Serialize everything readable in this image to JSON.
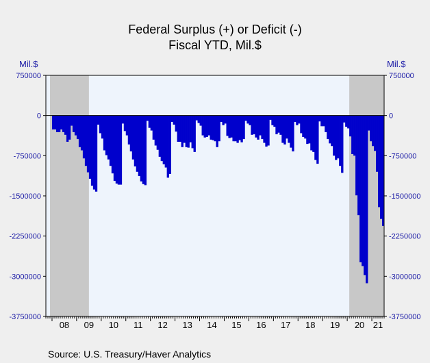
{
  "chart_data": {
    "type": "bar",
    "title": "Federal Surplus (+) or Deficit (-)",
    "subtitle": "Fiscal YTD, Mil.$",
    "ylabel_left": "Mil.$",
    "ylabel_right": "Mil.$",
    "source": "Source:  U.S. Treasury/Haver Analytics",
    "ylim": [
      -3750000,
      750000
    ],
    "yticks": [
      750000,
      0,
      -750000,
      -1500000,
      -2250000,
      -3000000,
      -3750000
    ],
    "ytick_labels": [
      "750000",
      "0",
      "-750000",
      "-1500000",
      "-2250000",
      "-3000000",
      "-3750000"
    ],
    "x_start": "2007-10",
    "x_end": "2021-07",
    "year_labels": [
      {
        "year": "2008",
        "label": "08"
      },
      {
        "year": "2009",
        "label": "09"
      },
      {
        "year": "2010",
        "label": "10"
      },
      {
        "year": "2011",
        "label": "11"
      },
      {
        "year": "2012",
        "label": "12"
      },
      {
        "year": "2013",
        "label": "13"
      },
      {
        "year": "2014",
        "label": "14"
      },
      {
        "year": "2015",
        "label": "15"
      },
      {
        "year": "2016",
        "label": "16"
      },
      {
        "year": "2017",
        "label": "17"
      },
      {
        "year": "2018",
        "label": "18"
      },
      {
        "year": "2019",
        "label": "19"
      },
      {
        "year": "2020",
        "label": "20"
      },
      {
        "year": "2021",
        "label": "21"
      }
    ],
    "recessions": [
      {
        "start": "2007-12",
        "end": "2009-06"
      },
      {
        "start": "2020-02",
        "end": "2021-06"
      }
    ],
    "series": [
      {
        "start": "2008-01",
        "values": [
          -260000,
          -260000,
          -310000,
          -310000,
          -260000,
          -310000,
          -360000,
          -490000,
          -450000,
          -190000,
          -310000,
          -370000,
          -440000,
          -590000,
          -650000,
          -800000,
          -940000,
          -1060000,
          -1180000,
          -1310000,
          -1380000,
          -1420000,
          -170000,
          -330000,
          -430000,
          -650000,
          -740000,
          -820000,
          -940000,
          -1080000,
          -1220000,
          -1270000,
          -1290000,
          -1290000,
          -150000,
          -290000,
          -370000,
          -540000,
          -670000,
          -820000,
          -950000,
          -1050000,
          -1130000,
          -1230000,
          -1280000,
          -1300000,
          -100000,
          -230000,
          -280000,
          -450000,
          -560000,
          -640000,
          -770000,
          -850000,
          -910000,
          -970000,
          -1160000,
          -1090000,
          -120000,
          -170000,
          -300000,
          -490000,
          -490000,
          -590000,
          -510000,
          -590000,
          -600000,
          -500000,
          -610000,
          -680000,
          -90000,
          -140000,
          -190000,
          -370000,
          -410000,
          -400000,
          -370000,
          -450000,
          -460000,
          -480000,
          -590000,
          -480000,
          -120000,
          -180000,
          -150000,
          -380000,
          -420000,
          -410000,
          -480000,
          -480000,
          -510000,
          -460000,
          -500000,
          -440000,
          -100000,
          -150000,
          -180000,
          -360000,
          -350000,
          -410000,
          -450000,
          -370000,
          -440000,
          -510000,
          -580000,
          -560000,
          -80000,
          -180000,
          -210000,
          -350000,
          -320000,
          -360000,
          -510000,
          -540000,
          -430000,
          -510000,
          -600000,
          -670000,
          -120000,
          -180000,
          -150000,
          -330000,
          -400000,
          -430000,
          -530000,
          -520000,
          -650000,
          -680000,
          -830000,
          -900000,
          -110000,
          -200000,
          -200000,
          -310000,
          -440000,
          -520000,
          -570000,
          -750000,
          -830000,
          -800000,
          -940000,
          -1070000,
          -130000,
          -210000,
          -240000,
          -390000,
          -720000,
          -750000,
          -1490000,
          -1860000,
          -2740000,
          -2810000,
          -2980000,
          -3130000,
          -280000,
          -480000,
          -570000,
          -660000,
          -1050000,
          -1710000,
          -1930000,
          -2060000
        ]
      }
    ],
    "colors": {
      "bar": "#0000cc",
      "recession": "#c8c8c8",
      "plot_bg": "#eef4fc",
      "axis_label": "#1a1aa6"
    }
  }
}
